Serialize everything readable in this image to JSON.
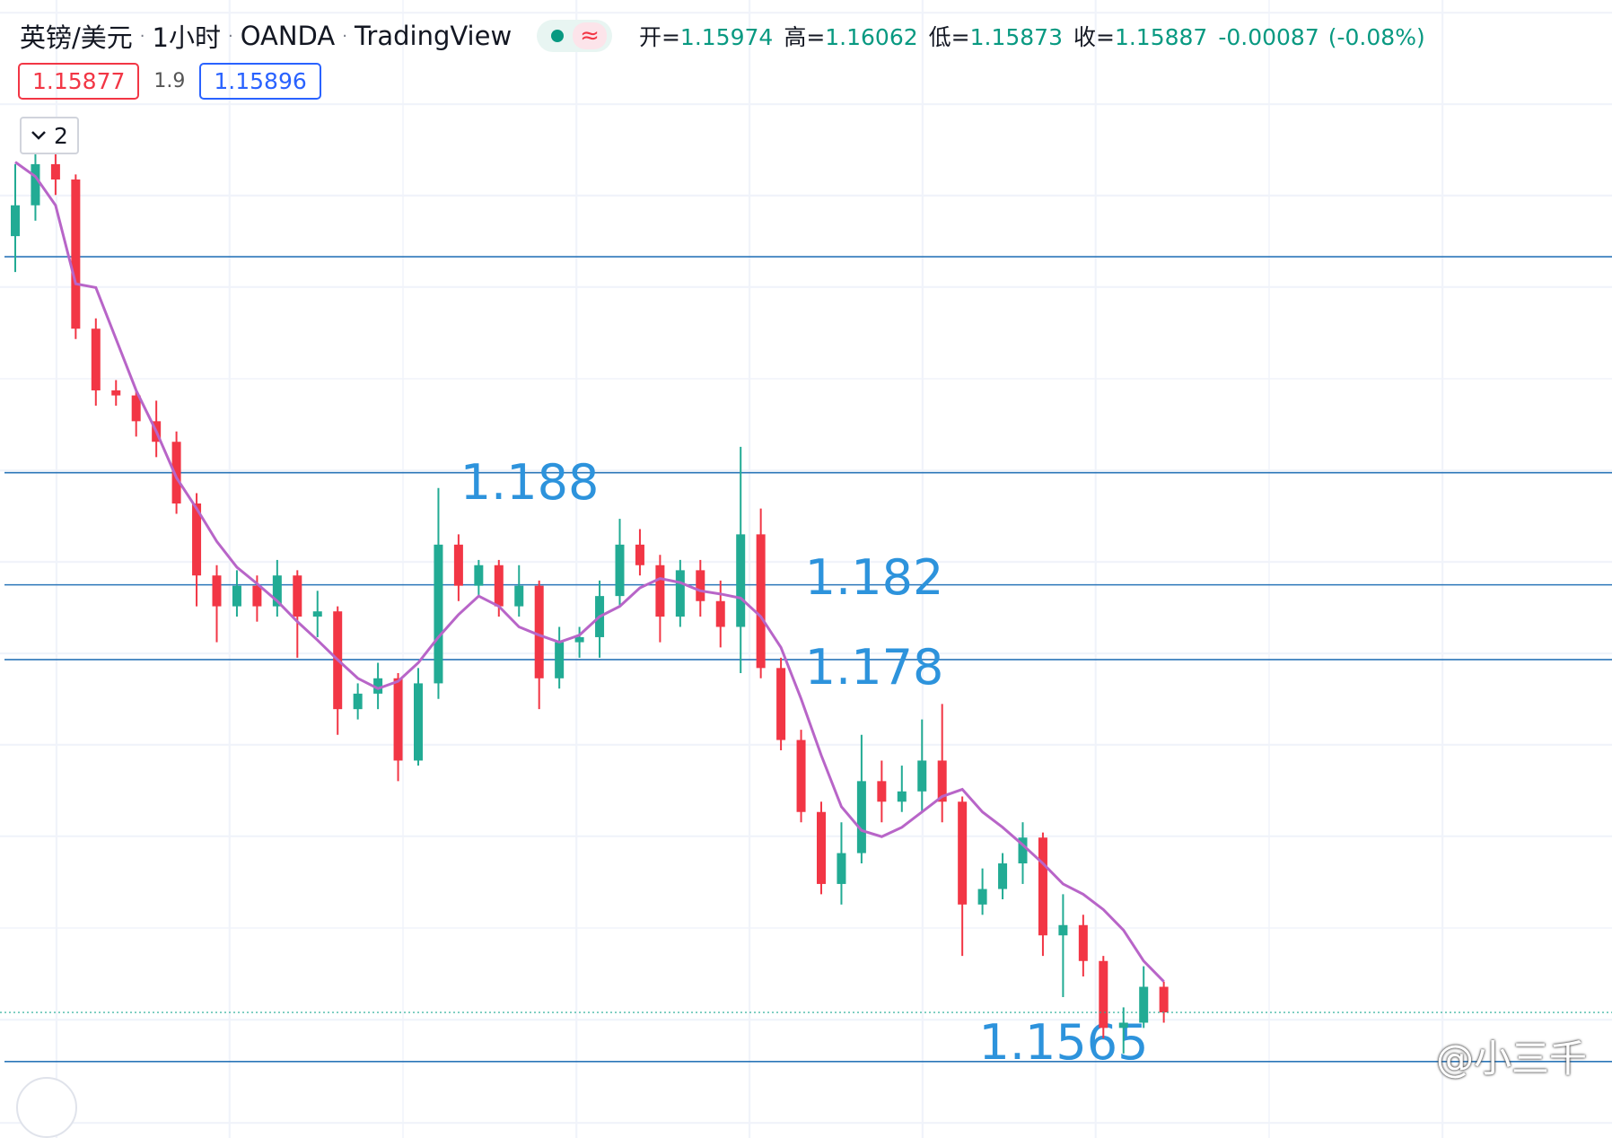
{
  "header": {
    "symbol": "英镑/美元",
    "separator": "·",
    "interval": "1小时",
    "exchange": "OANDA",
    "platform": "TradingView",
    "approx_icon": "≈",
    "ohlc": [
      {
        "key": "开=",
        "value": "1.15974"
      },
      {
        "key": "高=",
        "value": "1.16062"
      },
      {
        "key": "低=",
        "value": "1.15873"
      },
      {
        "key": "收=",
        "value": "1.15887"
      }
    ],
    "change": "-0.00087",
    "change_pct": "(-0.08%)"
  },
  "quote": {
    "bid": "1.15877",
    "spread": "1.9",
    "ask": "1.15896"
  },
  "indicator_count": "2",
  "watermark": "@小三千",
  "chart_data": {
    "type": "candlestick",
    "ylim": [
      1.1539,
      1.2056
    ],
    "up_color": "#22ab94",
    "down_color": "#f23645",
    "candles": {
      "open": [
        1.20065,
        1.2023,
        1.2045,
        1.20368,
        1.1957,
        1.1924,
        1.19213,
        1.19075,
        1.18965,
        1.18635,
        1.1825,
        1.18085,
        1.18195,
        1.18085,
        1.1825,
        1.1803,
        1.18058,
        1.17535,
        1.17618,
        1.177,
        1.1726,
        1.17673,
        1.18415,
        1.18195,
        1.18305,
        1.18085,
        1.18195,
        1.177,
        1.17893,
        1.1792,
        1.1814,
        1.18415,
        1.18305,
        1.1803,
        1.18278,
        1.18113,
        1.17975,
        1.1847,
        1.17755,
        1.1737,
        1.16985,
        1.166,
        1.16765,
        1.1715,
        1.1704,
        1.17095,
        1.1726,
        1.1704,
        1.1649,
        1.16573,
        1.1671,
        1.16848,
        1.16325,
        1.1638,
        1.16188,
        1.1583,
        1.15858,
        1.1605
      ],
      "high": [
        1.2045,
        1.20533,
        1.20505,
        1.20395,
        1.19625,
        1.19295,
        1.1924,
        1.19185,
        1.1902,
        1.1869,
        1.18305,
        1.18278,
        1.1825,
        1.18333,
        1.18278,
        1.18168,
        1.18085,
        1.17673,
        1.17783,
        1.17728,
        1.17755,
        1.18718,
        1.1847,
        1.18333,
        1.18333,
        1.18305,
        1.18223,
        1.17975,
        1.17975,
        1.18223,
        1.18553,
        1.18498,
        1.1836,
        1.18333,
        1.18333,
        1.18223,
        1.18938,
        1.18608,
        1.1781,
        1.17425,
        1.1704,
        1.1693,
        1.17398,
        1.1726,
        1.17233,
        1.1748,
        1.17563,
        1.17068,
        1.16683,
        1.16765,
        1.1693,
        1.16875,
        1.16545,
        1.16435,
        1.16215,
        1.1594,
        1.1616,
        1.16078
      ],
      "low": [
        1.19873,
        1.20148,
        1.20285,
        1.19515,
        1.19158,
        1.19158,
        1.18993,
        1.18883,
        1.1858,
        1.18085,
        1.17893,
        1.1803,
        1.18003,
        1.1803,
        1.1781,
        1.1792,
        1.17398,
        1.1748,
        1.17535,
        1.1715,
        1.17233,
        1.1759,
        1.18113,
        1.1814,
        1.1803,
        1.1803,
        1.17535,
        1.17645,
        1.1781,
        1.1781,
        1.18085,
        1.1825,
        1.17893,
        1.17975,
        1.1803,
        1.17865,
        1.17728,
        1.177,
        1.17315,
        1.1693,
        1.16545,
        1.1649,
        1.1671,
        1.1693,
        1.16985,
        1.16985,
        1.1693,
        1.16215,
        1.16435,
        1.16518,
        1.166,
        1.16215,
        1.15995,
        1.16105,
        1.15775,
        1.15693,
        1.1583,
        1.15858
      ],
      "close": [
        1.2023,
        1.2045,
        1.20368,
        1.1957,
        1.1924,
        1.19213,
        1.19075,
        1.18965,
        1.18635,
        1.1825,
        1.18085,
        1.18195,
        1.18085,
        1.1825,
        1.1803,
        1.18058,
        1.17535,
        1.17618,
        1.177,
        1.1726,
        1.17673,
        1.18415,
        1.18195,
        1.18305,
        1.18085,
        1.18195,
        1.177,
        1.17893,
        1.1792,
        1.1814,
        1.18415,
        1.18305,
        1.1803,
        1.18278,
        1.18113,
        1.17975,
        1.1847,
        1.17755,
        1.1737,
        1.16985,
        1.166,
        1.16765,
        1.1715,
        1.1704,
        1.17095,
        1.1726,
        1.1704,
        1.1649,
        1.16573,
        1.1671,
        1.16848,
        1.16325,
        1.1638,
        1.16188,
        1.1583,
        1.15858,
        1.1605,
        1.15913
      ]
    },
    "ma": {
      "color": "#b865c8",
      "values": [
        1.20461,
        1.20384,
        1.2023,
        1.1981,
        1.1979,
        1.19515,
        1.1924,
        1.1902,
        1.18773,
        1.18608,
        1.18432,
        1.18294,
        1.18206,
        1.18113,
        1.18003,
        1.17904,
        1.17799,
        1.177,
        1.17645,
        1.17684,
        1.17783,
        1.1792,
        1.18041,
        1.1814,
        1.18085,
        1.17975,
        1.17931,
        1.17893,
        1.17931,
        1.1803,
        1.18085,
        1.18184,
        1.18234,
        1.18212,
        1.18168,
        1.18151,
        1.18129,
        1.1803,
        1.17865,
        1.1759,
        1.17288,
        1.17013,
        1.16886,
        1.16853,
        1.16903,
        1.16985,
        1.17068,
        1.17106,
        1.16985,
        1.16903,
        1.16809,
        1.1671,
        1.166,
        1.16545,
        1.16463,
        1.16353,
        1.16188,
        1.16078
      ]
    },
    "hline_color": "#2b76b9",
    "label_color": "#2d93dc",
    "hlines": [
      {
        "value": 1.19955
      },
      {
        "value": 1.188,
        "label": "1.188"
      },
      {
        "value": 1.182,
        "label": "1.182"
      },
      {
        "value": 1.178,
        "label": "1.178"
      },
      {
        "value": 1.1565,
        "label": "1.1565"
      }
    ]
  }
}
